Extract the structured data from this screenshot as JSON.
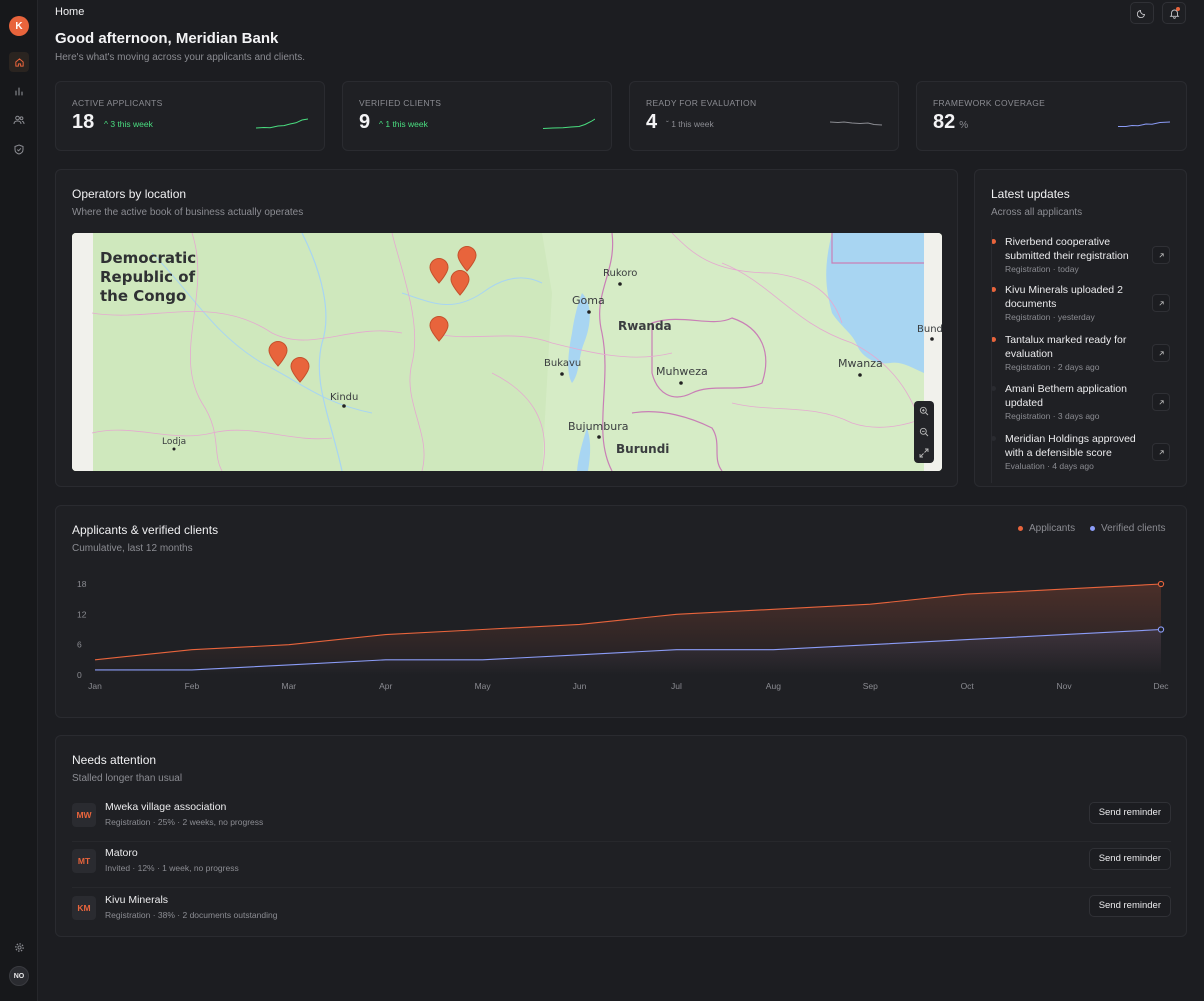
{
  "app": {
    "logo_letter": "K",
    "user_initials": "NO"
  },
  "sidebar": {
    "items": [
      {
        "icon": "home-icon",
        "active": true
      },
      {
        "icon": "bar-chart-icon",
        "active": false
      },
      {
        "icon": "users-icon",
        "active": false
      },
      {
        "icon": "shield-check-icon",
        "active": false
      }
    ],
    "settings_icon": "gear-icon"
  },
  "header": {
    "breadcrumb": "Home",
    "theme_icon": "moon-icon",
    "notification_icon": "bell-icon"
  },
  "greeting": {
    "title": "Good afternoon, Meridian Bank",
    "subtitle": "Here's what's moving across your applicants and clients."
  },
  "kpis": [
    {
      "label": "ACTIVE APPLICANTS",
      "value": "18",
      "delta": "3 this week",
      "trend": "up",
      "color": "#4ade80"
    },
    {
      "label": "VERIFIED CLIENTS",
      "value": "9",
      "delta": "1 this week",
      "trend": "up",
      "color": "#4ade80"
    },
    {
      "label": "READY FOR EVALUATION",
      "value": "4",
      "delta": "1 this week",
      "trend": "down",
      "color": "#8b8c92"
    },
    {
      "label": "FRAMEWORK COVERAGE",
      "value": "82",
      "unit": "%",
      "delta": "",
      "trend": "flat",
      "color": "#8b9cf7"
    }
  ],
  "map_card": {
    "title": "Operators by location",
    "subtitle": "Where the active book of business actually operates",
    "labels": {
      "country_line1": "Democratic",
      "country_line2": "Republic of",
      "country_line3": "the Congo",
      "rwanda": "Rwanda",
      "burundi": "Burundi",
      "goma": "Goma",
      "rukoro": "Rukoro",
      "bukavu": "Bukavu",
      "muhweza": "Muhweza",
      "mwanza": "Mwanza",
      "kindu": "Kindu",
      "bujumbura": "Bujumbura",
      "lodja": "Lodja",
      "bunda": "Bund"
    },
    "controls": [
      "zoom-in-icon",
      "zoom-out-icon",
      "fullscreen-icon"
    ],
    "marker_color": "#e8643c"
  },
  "updates": {
    "title": "Latest updates",
    "subtitle": "Across all applicants",
    "items": [
      {
        "title": "Riverbend cooperative submitted their registration",
        "meta": "Registration · today",
        "unread": true
      },
      {
        "title": "Kivu Minerals uploaded 2 documents",
        "meta": "Registration · yesterday",
        "unread": true
      },
      {
        "title": "Tantalux marked ready for evaluation",
        "meta": "Registration · 2 days ago",
        "unread": true
      },
      {
        "title": "Amani Bethem application updated",
        "meta": "Registration · 3 days ago",
        "unread": false
      },
      {
        "title": "Meridian Holdings approved with a defensible score",
        "meta": "Evaluation · 4 days ago",
        "unread": false
      }
    ]
  },
  "growth_chart": {
    "title": "Applicants & verified clients",
    "subtitle": "Cumulative, last 12 months",
    "legend": [
      "Applicants",
      "Verified clients"
    ]
  },
  "chart_data": {
    "type": "area",
    "title": "Applicants & verified clients",
    "subtitle": "Cumulative, last 12 months",
    "x": [
      "Jan",
      "Feb",
      "Mar",
      "Apr",
      "May",
      "Jun",
      "Jul",
      "Aug",
      "Sep",
      "Oct",
      "Nov",
      "Dec"
    ],
    "yticks": [
      0,
      6,
      12,
      18
    ],
    "ylim": [
      0,
      18
    ],
    "grid": false,
    "legend_position": "top-right",
    "series": [
      {
        "name": "Applicants",
        "color": "#e8643c",
        "values": [
          3,
          5,
          6,
          8,
          9,
          10,
          12,
          13,
          14,
          16,
          17,
          18
        ]
      },
      {
        "name": "Verified clients",
        "color": "#8b9cf7",
        "values": [
          1,
          1,
          2,
          3,
          3,
          4,
          5,
          5,
          6,
          7,
          8,
          9
        ]
      }
    ]
  },
  "attention": {
    "title": "Needs attention",
    "subtitle": "Stalled longer than usual",
    "items": [
      {
        "initials": "MW",
        "name": "Mweka village association",
        "meta": "Registration · 25% · 2 weeks, no progress",
        "action": "Send reminder"
      },
      {
        "initials": "MT",
        "name": "Matoro",
        "meta": "Invited · 12% · 1 week, no progress",
        "action": "Send reminder"
      },
      {
        "initials": "KM",
        "name": "Kivu Minerals",
        "meta": "Registration · 38% · 2 documents outstanding",
        "action": "Send reminder"
      }
    ]
  }
}
